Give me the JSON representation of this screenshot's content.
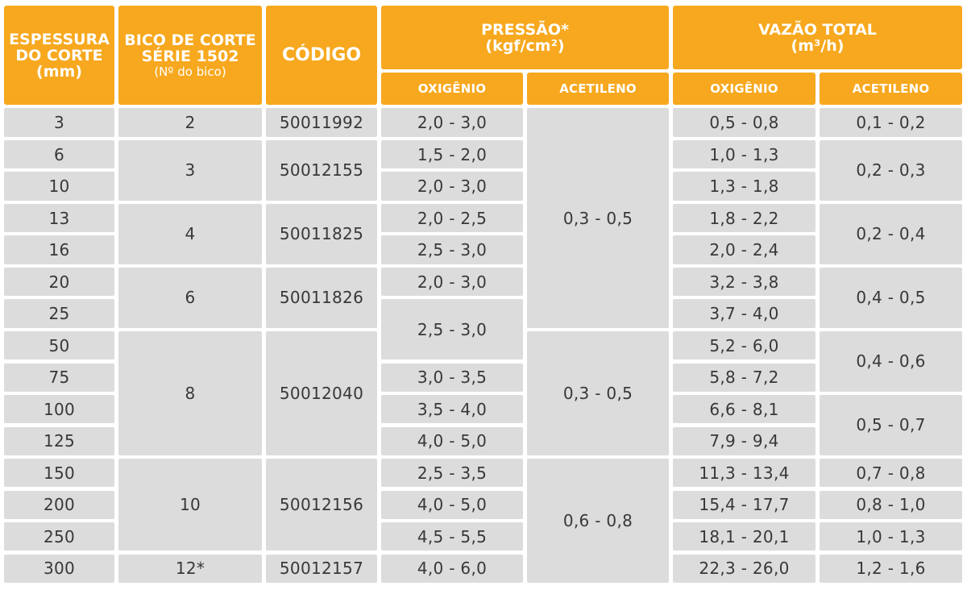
{
  "headers": {
    "espessura_l1": "ESPESSURA",
    "espessura_l2": "DO CORTE",
    "espessura_l3": "(mm)",
    "bico_l1": "BICO DE CORTE",
    "bico_l2": "SÉRIE 1502",
    "bico_l3": "(Nº do bico)",
    "codigo": "CÓDIGO",
    "pressao_l1": "PRESSÃO*",
    "pressao_l2": "(kgf/cm²)",
    "vazao_l1": "VAZÃO TOTAL",
    "vazao_l2": "(m³/h)",
    "pressao_oxigenio": "OXIGÊNIO",
    "pressao_acetileno": "ACETILENO",
    "vazao_oxigenio": "OXIGÊNIO",
    "vazao_acetileno": "ACETILENO"
  },
  "espessura": [
    "3",
    "6",
    "10",
    "13",
    "16",
    "20",
    "25",
    "50",
    "75",
    "100",
    "125",
    "150",
    "200",
    "250",
    "300"
  ],
  "bico": [
    "2",
    "3",
    "4",
    "6",
    "8",
    "10",
    "12*"
  ],
  "codigo": [
    "50011992",
    "50012155",
    "50011825",
    "50011826",
    "50012040",
    "50012156",
    "50012157"
  ],
  "pressao_oxigenio": [
    "2,0 - 3,0",
    "1,5 - 2,0",
    "2,0 - 3,0",
    "2,0 - 2,5",
    "2,5 - 3,0",
    "2,0 - 3,0",
    "2,5 - 3,0",
    "3,0 - 3,5",
    "3,5 - 4,0",
    "4,0 - 5,0",
    "2,5 - 3,5",
    "4,0 - 5,0",
    "4,5 - 5,5",
    "4,0 - 6,0"
  ],
  "pressao_acetileno": [
    "0,3 - 0,5",
    "0,3 - 0,5",
    "0,6 - 0,8"
  ],
  "vazao_oxigenio": [
    "0,5 - 0,8",
    "1,0 - 1,3",
    "1,3 - 1,8",
    "1,8 - 2,2",
    "2,0 - 2,4",
    "3,2 - 3,8",
    "3,7 - 4,0",
    "5,2 - 6,0",
    "5,8 - 7,2",
    "6,6 - 8,1",
    "7,9 - 9,4",
    "11,3 - 13,4",
    "15,4 - 17,7",
    "18,1 - 20,1",
    "22,3 - 26,0"
  ],
  "vazao_acetileno": [
    "0,1 - 0,2",
    "0,2 - 0,3",
    "0,2 - 0,4",
    "0,4 - 0,5",
    "0,4 - 0,6",
    "0,5 - 0,7",
    "0,7 - 0,8",
    "0,8 - 1,0",
    "1,0 - 1,3",
    "1,2 - 1,6"
  ]
}
